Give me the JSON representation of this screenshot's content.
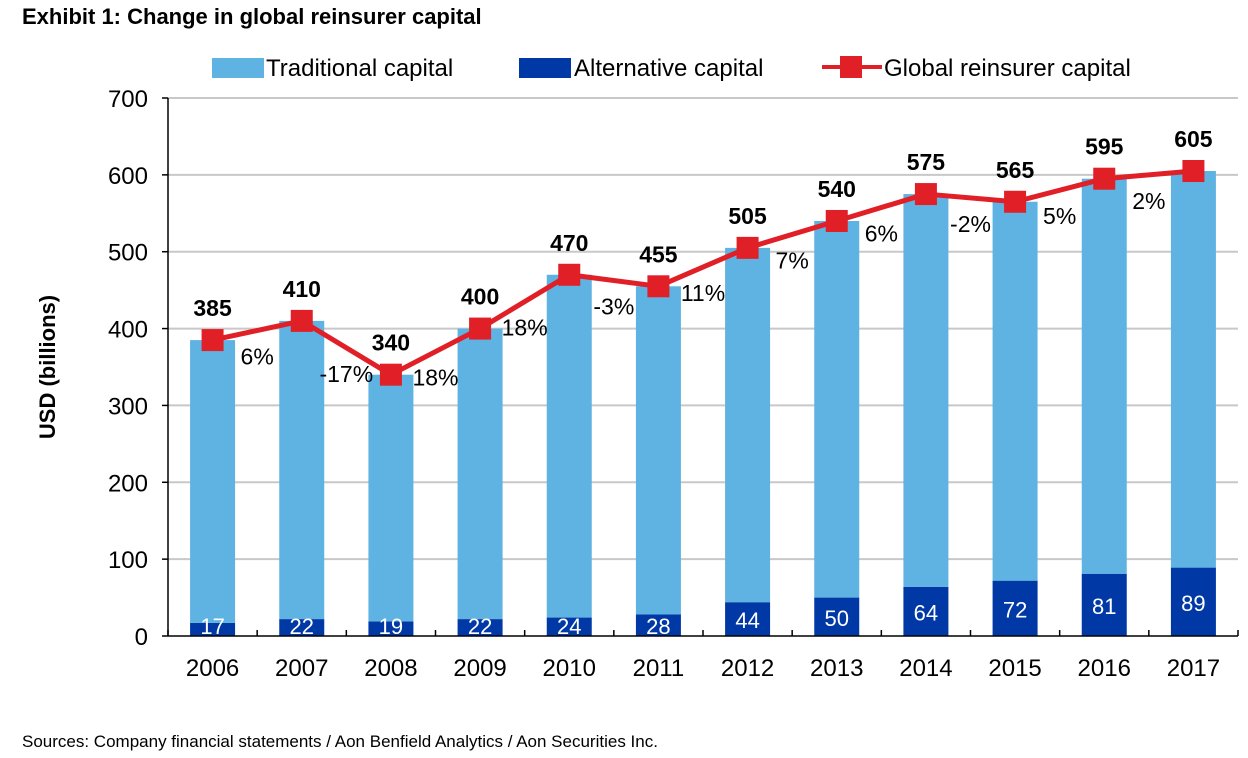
{
  "title": "Exhibit 1: Change in global reinsurer capital",
  "source": "Sources: Company financial statements / Aon Benfield Analytics / Aon Securities Inc.",
  "colors": {
    "traditional": "#5eb3e2",
    "alternative": "#0039a6",
    "line": "#e01f26",
    "grid": "#c8c8c8",
    "axis": "#000000"
  },
  "chart_data": {
    "type": "bar",
    "stacked": true,
    "title": "Exhibit 1: Change in global reinsurer capital",
    "xlabel": "",
    "ylabel": "USD (billions)",
    "ylim": [
      0,
      700
    ],
    "yticks": [
      0,
      100,
      200,
      300,
      400,
      500,
      600,
      700
    ],
    "grid": true,
    "legend_position": "top",
    "categories": [
      "2006",
      "2007",
      "2008",
      "2009",
      "2010",
      "2011",
      "2012",
      "2013",
      "2014",
      "2015",
      "2016",
      "2017"
    ],
    "series": [
      {
        "name": "Traditional capital",
        "type": "bar",
        "values": [
          368,
          388,
          321,
          378,
          446,
          427,
          461,
          490,
          511,
          493,
          514,
          516
        ]
      },
      {
        "name": "Alternative capital",
        "type": "bar",
        "values": [
          17,
          22,
          19,
          22,
          24,
          28,
          44,
          50,
          64,
          72,
          81,
          89
        ]
      },
      {
        "name": "Global reinsurer capital",
        "type": "line",
        "values": [
          385,
          410,
          340,
          400,
          470,
          455,
          505,
          540,
          575,
          565,
          595,
          605
        ]
      }
    ],
    "growth_labels": [
      "6%",
      "-17%",
      "18%",
      "18%",
      "-3%",
      "11%",
      "7%",
      "6%",
      "-2%",
      "5%",
      "2%"
    ]
  }
}
